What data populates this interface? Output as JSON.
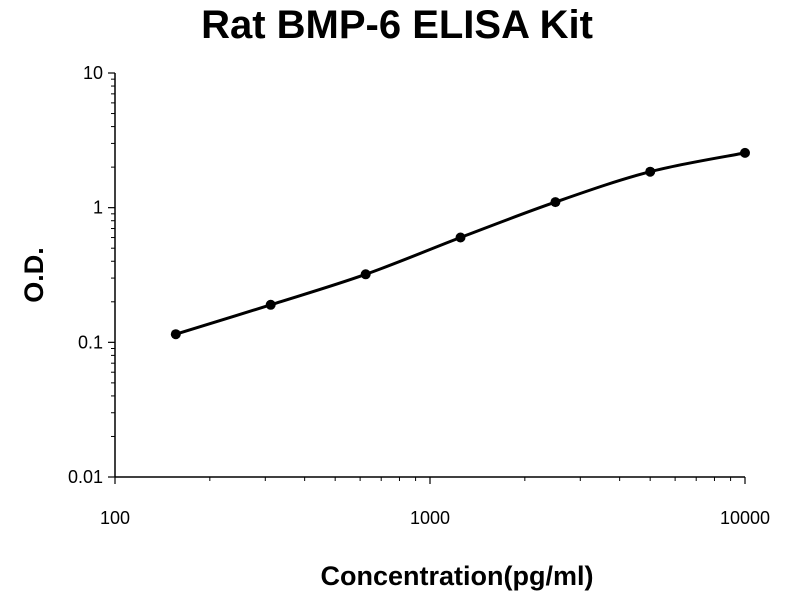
{
  "chart_data": {
    "type": "line",
    "title": "Rat BMP-6 ELISA Kit",
    "xlabel": "Concentration(pg/ml)",
    "ylabel": "O.D.",
    "xscale": "log",
    "yscale": "log",
    "xlim": [
      100,
      10000
    ],
    "ylim": [
      0.01,
      10
    ],
    "x_ticks": [
      100,
      1000,
      10000
    ],
    "x_tick_labels": [
      "100",
      "1000",
      "10000"
    ],
    "y_ticks": [
      0.01,
      0.1,
      1,
      10
    ],
    "y_tick_labels": [
      "0.01",
      "0.1",
      "1",
      "10"
    ],
    "grid": false,
    "legend": "none",
    "series": [
      {
        "x": [
          156,
          312,
          625,
          1250,
          2500,
          5000,
          10000
        ],
        "y": [
          0.115,
          0.19,
          0.32,
          0.6,
          1.1,
          1.85,
          2.55
        ]
      }
    ],
    "colors": {
      "line": "#000000",
      "marker": "#000000",
      "axis": "#000000"
    }
  }
}
